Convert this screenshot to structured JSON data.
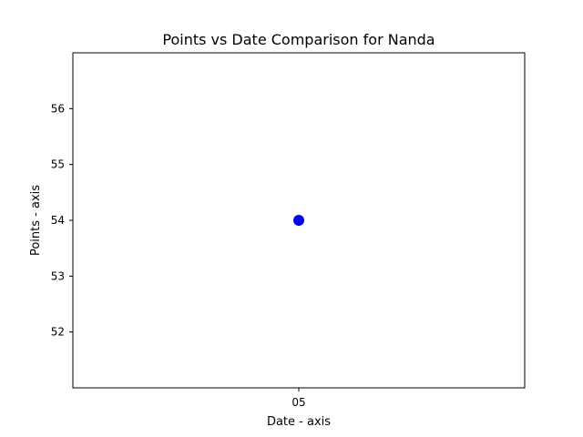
{
  "chart_data": {
    "type": "scatter",
    "title": "Points vs Date Comparison for Nanda",
    "xlabel": "Date - axis",
    "ylabel": "Points - axis",
    "x_ticks": [
      "05"
    ],
    "y_ticks": [
      52,
      53,
      54,
      55,
      56
    ],
    "ylim": [
      51,
      57
    ],
    "grid": false,
    "points": [
      {
        "x": "05",
        "y": 54
      }
    ],
    "marker_color": "#0000ff"
  }
}
